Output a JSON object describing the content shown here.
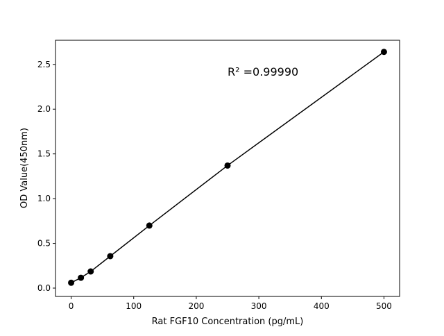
{
  "chart_data": {
    "type": "line",
    "title": "",
    "xlabel": "Rat FGF10 Concentration (pg/mL)",
    "ylabel": "OD Value(450nm)",
    "x": [
      0,
      15.625,
      31.25,
      62.5,
      125,
      250,
      500
    ],
    "y": [
      0.06,
      0.116,
      0.186,
      0.357,
      0.699,
      1.37,
      2.64
    ],
    "xlim": [
      -25,
      525
    ],
    "ylim": [
      -0.093,
      2.77
    ],
    "xticks": [
      0,
      100,
      200,
      300,
      400,
      500
    ],
    "xtick_labels": [
      "0",
      "100",
      "200",
      "300",
      "400",
      "500"
    ],
    "yticks": [
      0,
      0.5,
      1.0,
      1.5,
      2.0,
      2.5
    ],
    "ytick_labels": [
      "0.0",
      "0.5",
      "1.0",
      "1.5",
      "2.0",
      "2.5"
    ],
    "annotation": "R² =0.99990",
    "grid": false,
    "markers": "circle",
    "color": "#000000"
  }
}
